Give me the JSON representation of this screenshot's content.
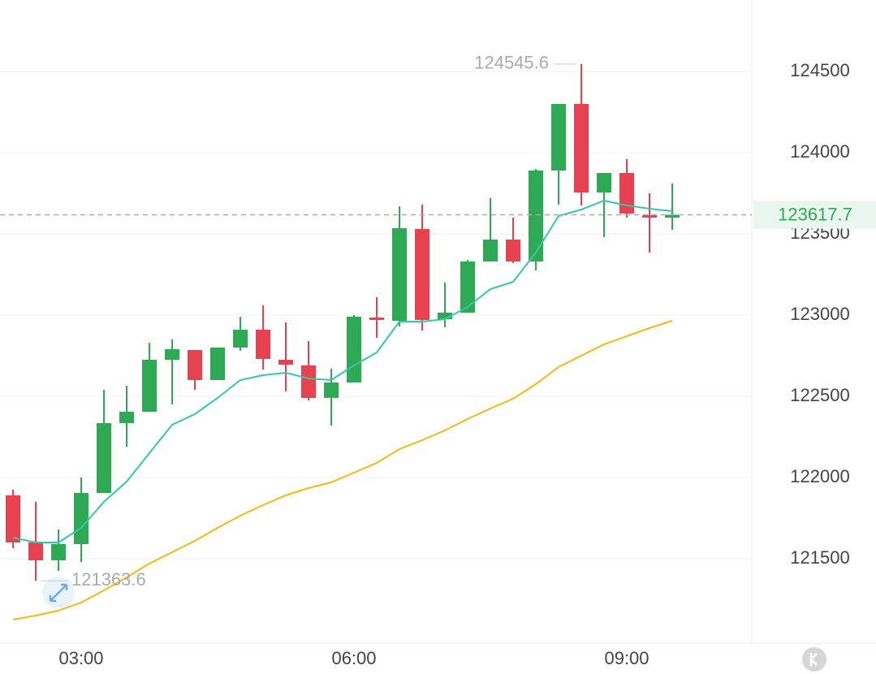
{
  "chart_data": {
    "type": "candlestick",
    "categories": [
      null,
      null,
      null,
      "03:00",
      null,
      null,
      null,
      null,
      null,
      null,
      null,
      null,
      null,
      null,
      null,
      "06:00",
      null,
      null,
      null,
      null,
      null,
      null,
      null,
      null,
      null,
      null,
      null,
      "09:00",
      null,
      null
    ],
    "open": [
      121890,
      121600,
      121490,
      121590,
      121905,
      122335,
      122405,
      122725,
      122785,
      122600,
      122800,
      122910,
      122725,
      122690,
      122490,
      122585,
      122985,
      122965,
      123530,
      122975,
      123015,
      123330,
      123465,
      123330,
      123890,
      124300,
      123755,
      123875,
      123615,
      123600
    ],
    "high": [
      121925,
      121850,
      121680,
      122000,
      122540,
      122565,
      122830,
      122850,
      122785,
      122800,
      122990,
      123060,
      122955,
      122840,
      122670,
      123000,
      123110,
      123670,
      123680,
      123200,
      123340,
      123720,
      123600,
      123900,
      124300,
      124545.6,
      123875,
      123960,
      123750,
      123810
    ],
    "low": [
      121565,
      121363.6,
      121425,
      121480,
      121905,
      122190,
      122405,
      122450,
      122540,
      122600,
      122780,
      122665,
      122530,
      122475,
      122320,
      122585,
      122860,
      122930,
      122905,
      122925,
      123015,
      123330,
      123320,
      123275,
      123680,
      123675,
      123480,
      123600,
      123385,
      123525
    ],
    "close": [
      121600,
      121490,
      121590,
      121905,
      122335,
      122405,
      122725,
      122790,
      122600,
      122800,
      122910,
      122730,
      122695,
      122490,
      122585,
      122990,
      122970,
      123535,
      122970,
      123015,
      123330,
      123465,
      123330,
      123890,
      124300,
      123755,
      123875,
      123625,
      123600,
      123617.7
    ],
    "up_color": "#2eaa54",
    "down_color": "#e8414f",
    "series": [
      {
        "color": "#33c9a6",
        "values": [
          121630,
          121600,
          121600,
          121690,
          121850,
          121975,
          122150,
          122325,
          122390,
          122490,
          122600,
          122630,
          122645,
          122610,
          122600,
          122690,
          122770,
          122960,
          122960,
          122975,
          123050,
          123160,
          123205,
          123385,
          123610,
          123650,
          123705,
          123675,
          123655,
          123640
        ]
      },
      {
        "color": "#f5b914",
        "values": [
          121125,
          121150,
          121180,
          121230,
          121305,
          121385,
          121470,
          121540,
          121610,
          121690,
          121765,
          121830,
          121890,
          121935,
          121970,
          122030,
          122090,
          122175,
          122230,
          122290,
          122360,
          122425,
          122485,
          122575,
          122680,
          122750,
          122820,
          122870,
          122920,
          122965
        ]
      }
    ],
    "ylim": [
      120980,
      124940
    ],
    "yticks": [
      121500,
      122000,
      122500,
      123000,
      123500,
      124000,
      124500
    ],
    "grid": true
  }
}
